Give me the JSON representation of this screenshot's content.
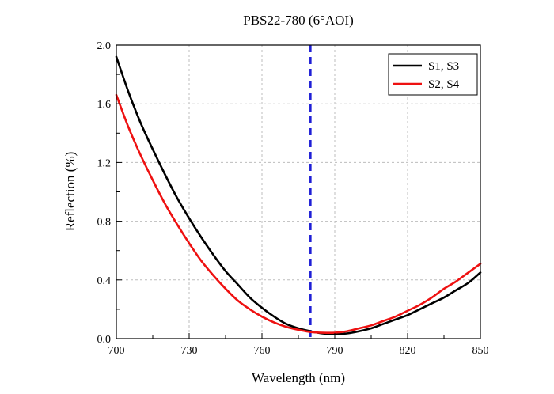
{
  "chart_data": {
    "type": "line",
    "title": "PBS22-780 (6°AOI)",
    "xlabel": "Wavelength (nm)",
    "ylabel": "Reflection (%)",
    "xlim": [
      700,
      850
    ],
    "ylim": [
      0.0,
      2.0
    ],
    "xticks": [
      700,
      730,
      760,
      790,
      820,
      850
    ],
    "yticks": [
      0.0,
      0.4,
      0.8,
      1.2,
      1.6,
      2.0
    ],
    "xtick_labels": [
      "700",
      "730",
      "760",
      "790",
      "820",
      "850"
    ],
    "ytick_labels": [
      "0.0",
      "0.4",
      "0.8",
      "1.2",
      "1.6",
      "2.0"
    ],
    "grid": true,
    "legend_position": "top-right",
    "reference_line": {
      "x": 780,
      "color": "#1f1fd6",
      "style": "dashed"
    },
    "series": [
      {
        "name": "S1, S3",
        "color": "#000000",
        "x": [
          700,
          705,
          710,
          715,
          720,
          725,
          730,
          735,
          740,
          745,
          750,
          755,
          760,
          765,
          770,
          775,
          780,
          785,
          790,
          795,
          800,
          805,
          810,
          815,
          820,
          825,
          830,
          835,
          840,
          845,
          850
        ],
        "y": [
          1.92,
          1.68,
          1.47,
          1.29,
          1.12,
          0.96,
          0.82,
          0.69,
          0.57,
          0.46,
          0.37,
          0.28,
          0.21,
          0.15,
          0.1,
          0.07,
          0.05,
          0.035,
          0.03,
          0.035,
          0.05,
          0.07,
          0.1,
          0.13,
          0.16,
          0.2,
          0.24,
          0.28,
          0.33,
          0.38,
          0.45
        ]
      },
      {
        "name": "S2, S4",
        "color": "#ee1111",
        "x": [
          700,
          705,
          710,
          715,
          720,
          725,
          730,
          735,
          740,
          745,
          750,
          755,
          760,
          765,
          770,
          775,
          780,
          785,
          790,
          795,
          800,
          805,
          810,
          815,
          820,
          825,
          830,
          835,
          840,
          845,
          850
        ],
        "y": [
          1.66,
          1.44,
          1.25,
          1.08,
          0.92,
          0.78,
          0.65,
          0.53,
          0.43,
          0.34,
          0.26,
          0.2,
          0.15,
          0.11,
          0.08,
          0.06,
          0.045,
          0.04,
          0.04,
          0.05,
          0.07,
          0.09,
          0.12,
          0.15,
          0.19,
          0.23,
          0.28,
          0.34,
          0.39,
          0.45,
          0.51
        ]
      }
    ]
  }
}
